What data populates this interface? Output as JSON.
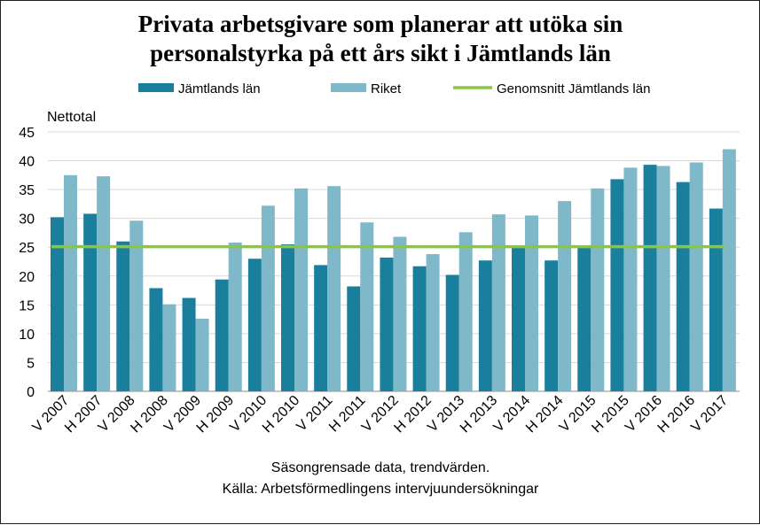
{
  "chart_data": {
    "type": "bar",
    "title": "Privata arbetsgivare som planerar att utöka sin",
    "title_line2": "personalstyrka på ett års sikt i Jämtlands län",
    "ylabel": "Nettotal",
    "ylim": [
      0,
      45
    ],
    "yticks": [
      0,
      5,
      10,
      15,
      20,
      25,
      30,
      35,
      40,
      45
    ],
    "grid": true,
    "legend_position": "top",
    "categories": [
      "V 2007",
      "H 2007",
      "V 2008",
      "H 2008",
      "V 2009",
      "H 2009",
      "V 2010",
      "H 2010",
      "V 2011",
      "H 2011",
      "V 2012",
      "H 2012",
      "V 2013",
      "H 2013",
      "V 2014",
      "H 2014",
      "V 2015",
      "H 2015",
      "V 2016",
      "H 2016",
      "V 2017"
    ],
    "series": [
      {
        "name": "Jämtlands län",
        "color": "#1a7f9c",
        "values": [
          30.2,
          30.8,
          26.0,
          17.9,
          16.2,
          19.4,
          23.0,
          25.5,
          21.9,
          18.2,
          23.2,
          21.7,
          20.2,
          22.7,
          25.0,
          22.7,
          25.0,
          36.8,
          39.3,
          36.3,
          31.7
        ]
      },
      {
        "name": "Riket",
        "color": "#7fb8c8",
        "values": [
          37.5,
          37.3,
          29.6,
          15.1,
          12.6,
          25.8,
          32.2,
          35.2,
          35.6,
          29.3,
          26.8,
          23.8,
          27.6,
          30.7,
          30.5,
          33.0,
          35.2,
          38.8,
          39.1,
          39.7,
          42.0
        ]
      },
      {
        "name": "Genomsnitt Jämtlands län",
        "color": "#8cc63f",
        "type": "line",
        "value": 25.1
      }
    ],
    "footer": [
      "Säsongrensade data, trendvärden.",
      "Källa: Arbetsförmedlingens  intervjuundersökningar"
    ]
  }
}
